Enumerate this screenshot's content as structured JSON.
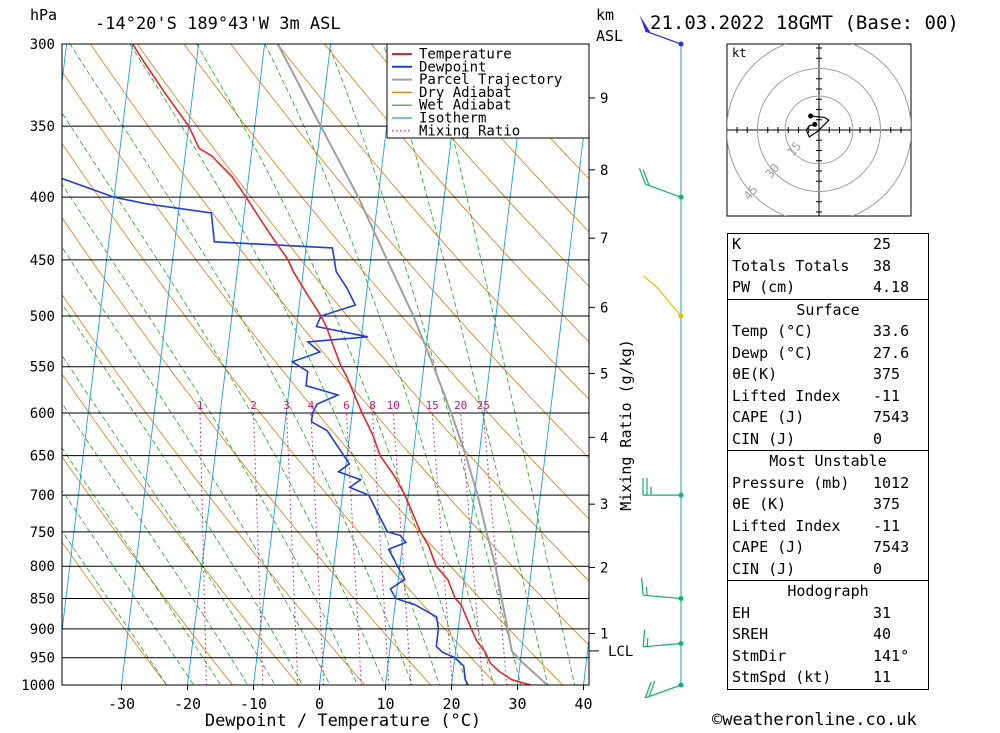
{
  "header": {
    "pressure_unit": "hPa",
    "location": "-14°20'S  189°43'W  3m  ASL",
    "km_label": "km",
    "asl_label": "ASL",
    "datetime": "21.03.2022  18GMT  (Base: 00)"
  },
  "chart_data": {
    "type": "skew-t",
    "xlabel": "Dewpoint / Temperature (°C)",
    "ylabel_right": "Mixing Ratio (g/kg)",
    "pressure_ticks": [
      300,
      350,
      400,
      450,
      500,
      550,
      600,
      650,
      700,
      750,
      800,
      850,
      900,
      950,
      1000
    ],
    "temperature_ticks": [
      -30,
      -20,
      -10,
      0,
      10,
      20,
      30,
      40
    ],
    "temperature_range": [
      -40,
      40
    ],
    "pressure_range": [
      300,
      1000
    ],
    "height_ticks_km": [
      {
        "km": "1",
        "p": 908
      },
      {
        "km": "2",
        "p": 802
      },
      {
        "km": "3",
        "p": 712
      },
      {
        "km": "4",
        "p": 628
      },
      {
        "km": "5",
        "p": 557
      },
      {
        "km": "6",
        "p": 492
      },
      {
        "km": "7",
        "p": 432
      },
      {
        "km": "8",
        "p": 380
      },
      {
        "km": "9",
        "p": 332
      }
    ],
    "lcl": {
      "label": "LCL",
      "p": 938
    },
    "mixing_ratio_labels": [
      "1",
      "2",
      "3",
      "4",
      "6",
      "8",
      "10",
      "15",
      "20",
      "25"
    ],
    "mixing_ratio_values": [
      1,
      2,
      3,
      4,
      6,
      8,
      10,
      15,
      20,
      25
    ],
    "legend": [
      "Temperature",
      "Dewpoint",
      "Parcel Trajectory",
      "Dry Adiabat",
      "Wet Adiabat",
      "Isotherm",
      "Mixing Ratio"
    ],
    "colors": {
      "temperature": "#e8262a",
      "dewpoint": "#1f3fd6",
      "parcel": "#a0a0a0",
      "dry_adiabat": "#e07a18",
      "wet_adiabat": "#1aa81a",
      "isotherm": "#1aa0e0",
      "mixing_ratio": "#c0188a"
    },
    "temperature_profile": [
      [
        1000,
        32.0
      ],
      [
        990,
        29.0
      ],
      [
        975,
        27.0
      ],
      [
        960,
        25.5
      ],
      [
        940,
        24.5
      ],
      [
        920,
        23.0
      ],
      [
        900,
        22.0
      ],
      [
        880,
        21.0
      ],
      [
        860,
        20.0
      ],
      [
        850,
        19.0
      ],
      [
        820,
        17.5
      ],
      [
        800,
        15.5
      ],
      [
        770,
        14.0
      ],
      [
        750,
        12.5
      ],
      [
        700,
        9.5
      ],
      [
        675,
        7.5
      ],
      [
        650,
        5.0
      ],
      [
        625,
        3.5
      ],
      [
        600,
        1.5
      ],
      [
        580,
        0.0
      ],
      [
        560,
        -1.5
      ],
      [
        550,
        -2.5
      ],
      [
        530,
        -4.0
      ],
      [
        510,
        -5.5
      ],
      [
        500,
        -6.5
      ],
      [
        480,
        -9.0
      ],
      [
        460,
        -11.5
      ],
      [
        450,
        -12.5
      ],
      [
        430,
        -15.5
      ],
      [
        420,
        -17.0
      ],
      [
        400,
        -20.0
      ],
      [
        385,
        -22.5
      ],
      [
        370,
        -26.0
      ],
      [
        365,
        -28.0
      ],
      [
        350,
        -30.0
      ],
      [
        330,
        -34.0
      ],
      [
        310,
        -38.0
      ],
      [
        300,
        -40.0
      ]
    ],
    "dewpoint_profile": [
      [
        1000,
        22.5
      ],
      [
        990,
        22.0
      ],
      [
        965,
        21.5
      ],
      [
        950,
        20.0
      ],
      [
        940,
        18.0
      ],
      [
        930,
        17.0
      ],
      [
        900,
        17.0
      ],
      [
        880,
        16.5
      ],
      [
        860,
        13.0
      ],
      [
        850,
        10.0
      ],
      [
        835,
        9.0
      ],
      [
        820,
        11.0
      ],
      [
        805,
        10.0
      ],
      [
        790,
        9.0
      ],
      [
        775,
        8.0
      ],
      [
        765,
        10.5
      ],
      [
        755,
        9.5
      ],
      [
        750,
        7.5
      ],
      [
        700,
        4.0
      ],
      [
        690,
        1.0
      ],
      [
        680,
        2.5
      ],
      [
        670,
        -1.0
      ],
      [
        660,
        0.5
      ],
      [
        650,
        -0.5
      ],
      [
        620,
        -3.5
      ],
      [
        610,
        -6.0
      ],
      [
        600,
        -6.0
      ],
      [
        590,
        -5.5
      ],
      [
        580,
        -2.5
      ],
      [
        570,
        -7.5
      ],
      [
        555,
        -7.5
      ],
      [
        545,
        -10.0
      ],
      [
        535,
        -6.0
      ],
      [
        525,
        -8.0
      ],
      [
        520,
        1.0
      ],
      [
        510,
        -7.0
      ],
      [
        500,
        -6.5
      ],
      [
        490,
        -1.5
      ],
      [
        475,
        -3.0
      ],
      [
        460,
        -5.0
      ],
      [
        440,
        -6.0
      ],
      [
        435,
        -24.0
      ],
      [
        412,
        -25.0
      ],
      [
        405,
        -35.0
      ],
      [
        400,
        -40.0
      ],
      [
        385,
        -49.0
      ],
      [
        370,
        -54.0
      ],
      [
        320,
        -55.0
      ],
      [
        310,
        -56.0
      ],
      [
        300,
        -52.0
      ]
    ],
    "parcel_profile": [
      [
        1000,
        34.5
      ],
      [
        960,
        30.5
      ],
      [
        938,
        28.5
      ],
      [
        900,
        27.5
      ],
      [
        850,
        26.0
      ],
      [
        800,
        24.5
      ],
      [
        750,
        22.5
      ],
      [
        700,
        20.5
      ],
      [
        650,
        18.0
      ],
      [
        600,
        15.0
      ],
      [
        550,
        11.5
      ],
      [
        500,
        7.5
      ],
      [
        450,
        2.5
      ],
      [
        400,
        -3.0
      ],
      [
        350,
        -10.0
      ],
      [
        300,
        -18.0
      ]
    ],
    "wind_barbs": [
      {
        "p": 300,
        "dir": 290,
        "spd": 50
      },
      {
        "p": 400,
        "dir": 290,
        "spd": 20
      },
      {
        "p": 500,
        "dir": 320,
        "spd": 10
      },
      {
        "p": 700,
        "dir": 270,
        "spd": 25
      },
      {
        "p": 850,
        "dir": 275,
        "spd": 15
      },
      {
        "p": 925,
        "dir": 265,
        "spd": 15
      },
      {
        "p": 1000,
        "dir": 250,
        "spd": 20
      }
    ],
    "hodograph": {
      "unit_label": "kt",
      "ring_labels": [
        "15",
        "30",
        "45"
      ],
      "ring_speeds": [
        15,
        30,
        45
      ],
      "trace": [
        [
          -3,
          4
        ],
        [
          -7,
          3
        ],
        [
          -9,
          0
        ],
        [
          -7,
          -5
        ],
        [
          -1,
          -1
        ],
        [
          7,
          7
        ],
        [
          4,
          9
        ],
        [
          -6,
          10
        ]
      ]
    }
  },
  "indices": [
    {
      "label": "K",
      "value": "25"
    },
    {
      "label": "Totals Totals",
      "value": "38"
    },
    {
      "label": "PW (cm)",
      "value": "4.18"
    }
  ],
  "surface": {
    "title": "Surface",
    "rows": [
      {
        "label": "Temp (°C)",
        "value": "33.6"
      },
      {
        "label": "Dewp (°C)",
        "value": "27.6"
      },
      {
        "label": "θE(K)",
        "value": "375"
      },
      {
        "label": "Lifted Index",
        "value": "-11"
      },
      {
        "label": "CAPE (J)",
        "value": "7543"
      },
      {
        "label": "CIN (J)",
        "value": "0"
      }
    ]
  },
  "most_unstable": {
    "title": "Most Unstable",
    "rows": [
      {
        "label": "Pressure (mb)",
        "value": "1012"
      },
      {
        "label": "θE (K)",
        "value": "375"
      },
      {
        "label": "Lifted Index",
        "value": "-11"
      },
      {
        "label": "CAPE (J)",
        "value": "7543"
      },
      {
        "label": "CIN (J)",
        "value": "0"
      }
    ]
  },
  "hodograph_stats": {
    "title": "Hodograph",
    "rows": [
      {
        "label": "EH",
        "value": "31"
      },
      {
        "label": "SREH",
        "value": "40"
      },
      {
        "label": "StmDir",
        "value": "141°"
      },
      {
        "label": "StmSpd (kt)",
        "value": "11"
      }
    ]
  },
  "copyright": "©weatheronline.co.uk"
}
